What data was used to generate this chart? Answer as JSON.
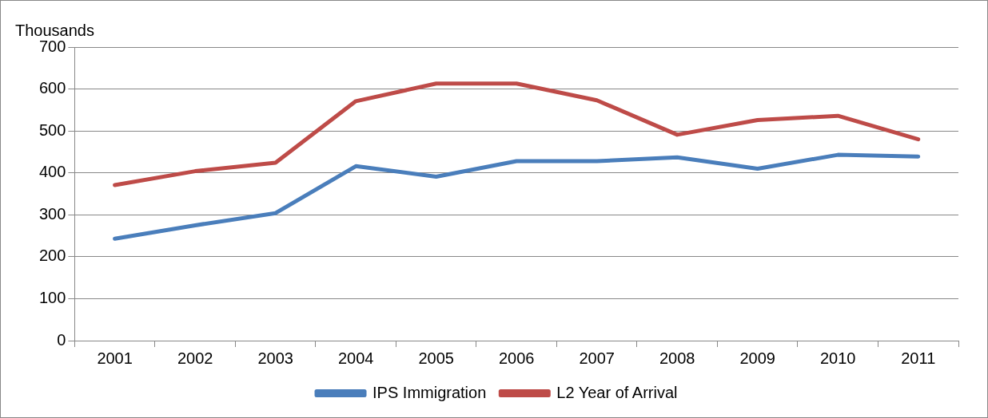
{
  "chart_data": {
    "type": "line",
    "ylabel": "Thousands",
    "categories": [
      "2001",
      "2002",
      "2003",
      "2004",
      "2005",
      "2006",
      "2007",
      "2008",
      "2009",
      "2010",
      "2011"
    ],
    "series": [
      {
        "name": "IPS Immigration",
        "color": "#4a7ebb",
        "values": [
          243,
          275,
          304,
          416,
          391,
          428,
          428,
          437,
          410,
          443,
          439
        ]
      },
      {
        "name": "L2 Year of Arrival",
        "color": "#be4b48",
        "values": [
          371,
          404,
          424,
          571,
          613,
          613,
          573,
          491,
          526,
          536,
          480
        ]
      }
    ],
    "ylim": [
      0,
      700
    ],
    "yticks": [
      0,
      100,
      200,
      300,
      400,
      500,
      600,
      700
    ],
    "grid": "y",
    "legend": "bottom",
    "marker": "none",
    "line_style": "solid"
  }
}
